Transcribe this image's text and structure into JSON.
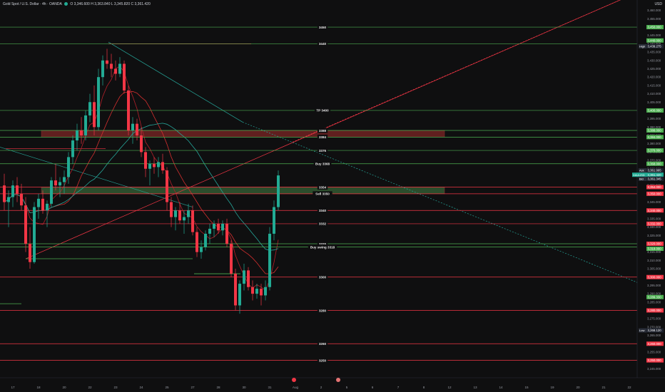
{
  "header": {
    "symbol_line": "Gold Spot / U.S. Dollar · 4h · OANDA",
    "o": "O 3,346.600",
    "h": "H 3,363.840",
    "l": "L 3,345.820",
    "c": "C 3,361.420"
  },
  "currency": "USD",
  "colors": {
    "up": "#22ab94",
    "down": "#f23645",
    "green_line": "#4caf50",
    "red_line": "#f23645",
    "bg": "#0f0f10"
  },
  "chart_data": {
    "type": "candlestick",
    "title": "Gold Spot / U.S. Dollar · 4h · OANDA",
    "ylim": [
      3243,
      3462
    ],
    "price_ticks": [
      3460,
      3455,
      3450,
      3445,
      3440,
      3435,
      3430,
      3425,
      3420,
      3415,
      3410,
      3405,
      3400,
      3395,
      3390,
      3385,
      3380,
      3375,
      3370,
      3365,
      3360,
      3355,
      3350,
      3345,
      3340,
      3335,
      3330,
      3325,
      3320,
      3315,
      3310,
      3305,
      3300,
      3295,
      3290,
      3285,
      3280,
      3275,
      3270,
      3265,
      3260,
      3255,
      3250,
      3245
    ],
    "price_tick_labels": [
      "3,460.000",
      "3,455.000",
      "3,450.000",
      "3,445.000",
      "3,440.000",
      "3,435.000",
      "3,430.000",
      "3,425.000",
      "3,420.000",
      "3,415.000",
      "3,410.000",
      "3,405.000",
      "3,400.000",
      "3,395.000",
      "3,390.000",
      "3,385.000",
      "3,380.000",
      "3,375.000",
      "3,370.000",
      "3,365.000",
      "3,360.000",
      "3,355.000",
      "3,350.000",
      "3,345.000",
      "3,340.000",
      "3,335.000",
      "3,330.000",
      "3,325.000",
      "3,320.000",
      "3,315.000",
      "3,310.000",
      "3,305.000",
      "3,300.000",
      "3,295.000",
      "3,290.000",
      "3,285.000",
      "3,280.000",
      "3,275.000",
      "3,270.000",
      "3,265.000",
      "3,260.000",
      "3,255.000",
      "3,250.000",
      "3,245.000"
    ],
    "x_ticks": [
      {
        "label": "17",
        "i": 2
      },
      {
        "label": "18",
        "i": 8
      },
      {
        "label": "20",
        "i": 14
      },
      {
        "label": "22",
        "i": 20
      },
      {
        "label": "23",
        "i": 26
      },
      {
        "label": "24",
        "i": 32
      },
      {
        "label": "25",
        "i": 38
      },
      {
        "label": "27",
        "i": 44
      },
      {
        "label": "28",
        "i": 50
      },
      {
        "label": "30",
        "i": 56
      },
      {
        "label": "31",
        "i": 62
      },
      {
        "label": "Aug",
        "i": 68
      },
      {
        "label": "2",
        "i": 74
      },
      {
        "label": "5",
        "i": 80
      },
      {
        "label": "6",
        "i": 86
      },
      {
        "label": "7",
        "i": 92
      },
      {
        "label": "8",
        "i": 98
      },
      {
        "label": "12",
        "i": 104
      },
      {
        "label": "13",
        "i": 110
      },
      {
        "label": "14",
        "i": 116
      },
      {
        "label": "15",
        "i": 122
      },
      {
        "label": "19",
        "i": 128
      },
      {
        "label": "20",
        "i": 134
      },
      {
        "label": "21",
        "i": 140
      },
      {
        "label": "22",
        "i": 146
      }
    ],
    "candles": [
      [
        3355,
        3362,
        3340,
        3345
      ],
      [
        3345,
        3352,
        3330,
        3348
      ],
      [
        3348,
        3358,
        3342,
        3355
      ],
      [
        3355,
        3360,
        3345,
        3350
      ],
      [
        3350,
        3356,
        3340,
        3343
      ],
      [
        3343,
        3348,
        3315,
        3320
      ],
      [
        3320,
        3330,
        3305,
        3309
      ],
      [
        3309,
        3345,
        3308,
        3342
      ],
      [
        3342,
        3350,
        3335,
        3347
      ],
      [
        3347,
        3352,
        3338,
        3340
      ],
      [
        3340,
        3346,
        3330,
        3344
      ],
      [
        3344,
        3360,
        3342,
        3358
      ],
      [
        3358,
        3368,
        3352,
        3355
      ],
      [
        3355,
        3360,
        3348,
        3357
      ],
      [
        3357,
        3364,
        3350,
        3360
      ],
      [
        3360,
        3375,
        3356,
        3372
      ],
      [
        3372,
        3385,
        3368,
        3382
      ],
      [
        3382,
        3392,
        3376,
        3388
      ],
      [
        3388,
        3396,
        3380,
        3385
      ],
      [
        3385,
        3400,
        3382,
        3397
      ],
      [
        3397,
        3410,
        3393,
        3405
      ],
      [
        3405,
        3415,
        3385,
        3390
      ],
      [
        3390,
        3425,
        3388,
        3420
      ],
      [
        3420,
        3433,
        3415,
        3430
      ],
      [
        3430,
        3437,
        3425,
        3428
      ],
      [
        3428,
        3434,
        3420,
        3425
      ],
      [
        3425,
        3430,
        3418,
        3422
      ],
      [
        3422,
        3432,
        3420,
        3428
      ],
      [
        3428,
        3430,
        3410,
        3412
      ],
      [
        3412,
        3415,
        3385,
        3388
      ],
      [
        3388,
        3396,
        3380,
        3392
      ],
      [
        3392,
        3395,
        3382,
        3385
      ],
      [
        3385,
        3390,
        3372,
        3375
      ],
      [
        3375,
        3378,
        3360,
        3365
      ],
      [
        3365,
        3370,
        3355,
        3368
      ],
      [
        3368,
        3372,
        3362,
        3366
      ],
      [
        3366,
        3372,
        3360,
        3369
      ],
      [
        3369,
        3374,
        3362,
        3364
      ],
      [
        3364,
        3366,
        3340,
        3345
      ],
      [
        3345,
        3348,
        3330,
        3336
      ],
      [
        3336,
        3342,
        3328,
        3340
      ],
      [
        3340,
        3345,
        3332,
        3334
      ],
      [
        3334,
        3340,
        3326,
        3336
      ],
      [
        3336,
        3344,
        3332,
        3340
      ],
      [
        3340,
        3343,
        3325,
        3327
      ],
      [
        3327,
        3330,
        3312,
        3315
      ],
      [
        3315,
        3322,
        3311,
        3318
      ],
      [
        3318,
        3328,
        3316,
        3326
      ],
      [
        3326,
        3332,
        3320,
        3329
      ],
      [
        3329,
        3334,
        3324,
        3332
      ],
      [
        3332,
        3335,
        3326,
        3328
      ],
      [
        3328,
        3334,
        3325,
        3332
      ],
      [
        3332,
        3335,
        3318,
        3320
      ],
      [
        3320,
        3322,
        3300,
        3302
      ],
      [
        3302,
        3305,
        3280,
        3283
      ],
      [
        3283,
        3298,
        3278,
        3296
      ],
      [
        3296,
        3308,
        3292,
        3304
      ],
      [
        3304,
        3306,
        3292,
        3294
      ],
      [
        3294,
        3298,
        3286,
        3290
      ],
      [
        3290,
        3296,
        3287,
        3293
      ],
      [
        3293,
        3296,
        3283,
        3289
      ],
      [
        3289,
        3298,
        3286,
        3294
      ],
      [
        3294,
        3330,
        3292,
        3326
      ],
      [
        3326,
        3346,
        3322,
        3342
      ],
      [
        3342,
        3364,
        3340,
        3361
      ]
    ],
    "levels": [
      {
        "label": "3450",
        "price": 3450,
        "color": "green"
      },
      {
        "label": "3440",
        "price": 3440,
        "color": "green"
      },
      {
        "label": "TP 3400",
        "price": 3400,
        "color": "green"
      },
      {
        "label": "3388",
        "price": 3388,
        "color": "green"
      },
      {
        "label": "3384",
        "price": 3384,
        "color": "green"
      },
      {
        "label": "3376",
        "price": 3376,
        "color": "green"
      },
      {
        "label": "Buy 3368",
        "price": 3368,
        "color": "green"
      },
      {
        "label": "3354",
        "price": 3354,
        "color": "red"
      },
      {
        "label": "Sell 3350",
        "price": 3350,
        "color": "red"
      },
      {
        "label": "3340",
        "price": 3340,
        "color": "red"
      },
      {
        "label": "3332",
        "price": 3332,
        "color": "red"
      },
      {
        "label": "3320",
        "price": 3320,
        "color": "green"
      },
      {
        "label": "Buy swing 3318",
        "price": 3318,
        "color": "green"
      },
      {
        "label": "3300",
        "price": 3300,
        "color": "red"
      },
      {
        "label": "3280",
        "price": 3280,
        "color": "red"
      },
      {
        "label": "3260",
        "price": 3260,
        "color": "red"
      },
      {
        "label": "3250",
        "price": 3250,
        "color": "red"
      }
    ],
    "right_tags": [
      {
        "text": "3,450.000",
        "price": 3450,
        "color": "#4caf50"
      },
      {
        "text": "3,440.000",
        "price": 3442,
        "color": "#4caf50"
      },
      {
        "text": "3,400.000",
        "price": 3400,
        "color": "#4caf50"
      },
      {
        "text": "3,388.000",
        "price": 3388,
        "color": "#4caf50"
      },
      {
        "text": "3,384.000",
        "price": 3384,
        "color": "#4caf50"
      },
      {
        "text": "3,376.000",
        "price": 3376,
        "color": "#4caf50"
      },
      {
        "text": "3,368.000",
        "price": 3368,
        "color": "#4caf50"
      },
      {
        "text": "3,354.000",
        "price": 3354,
        "color": "#f23645"
      },
      {
        "text": "3,350.000",
        "price": 3350,
        "color": "#f23645"
      },
      {
        "text": "3,340.000",
        "price": 3340,
        "color": "#f23645"
      },
      {
        "text": "3,332.000",
        "price": 3332,
        "color": "#f23645"
      },
      {
        "text": "3,320.000",
        "price": 3320,
        "color": "#f23645"
      },
      {
        "text": "3,318.000",
        "price": 3317,
        "color": "#4caf50"
      },
      {
        "text": "3,300.000",
        "price": 3300,
        "color": "#f23645"
      },
      {
        "text": "3,280.000",
        "price": 3280,
        "color": "#f23645"
      },
      {
        "text": "3,260.000",
        "price": 3260,
        "color": "#f23645"
      },
      {
        "text": "3,250.000",
        "price": 3250,
        "color": "#f23645"
      },
      {
        "text": "3,289.330",
        "price": 3288,
        "color": "#4caf50"
      }
    ],
    "special_tags": [
      {
        "key": "High",
        "text": "3,439.275",
        "price": 3438.5
      },
      {
        "key": "Low",
        "text": "3,268.120",
        "price": 3268
      },
      {
        "key": "Ask",
        "text": "3,361.995",
        "price": 3364
      },
      {
        "key": "XAUUSD",
        "text": "3,361.420",
        "price": 3361.4
      },
      {
        "key": "Bid",
        "text": "3,361.345",
        "price": 3359
      }
    ],
    "zones": [
      {
        "top": 3388,
        "bottom": 3384,
        "fill": "rgba(140,40,40,0.65)"
      },
      {
        "top": 3354,
        "bottom": 3350,
        "fill": "rgba(60,110,60,0.65)"
      }
    ]
  }
}
